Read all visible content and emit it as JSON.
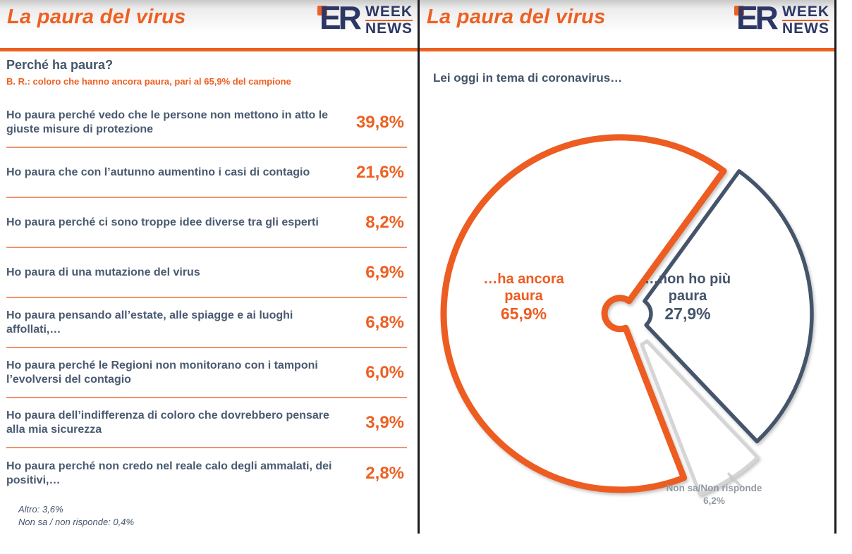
{
  "brand": {
    "monogram": "ER",
    "line1": "WEEK",
    "line2": "NEWS"
  },
  "left_slide": {
    "title": "La paura del virus",
    "question": "Perché ha paura?",
    "base_note": "B. R.: coloro che hanno ancora paura, pari al 65,9% del campione",
    "rows": [
      {
        "label": "Ho paura perché vedo che le persone non mettono in atto le giuste misure di protezione",
        "value": "39,8%"
      },
      {
        "label": "Ho paura che con l’autunno aumentino i casi di contagio",
        "value": "21,6%"
      },
      {
        "label": "Ho paura perché ci sono troppe idee diverse tra gli esperti",
        "value": "8,2%"
      },
      {
        "label": "Ho paura di una mutazione del virus",
        "value": "6,9%"
      },
      {
        "label": "Ho paura pensando all’estate, alle spiagge e ai luoghi affollati,…",
        "value": "6,8%"
      },
      {
        "label": "Ho paura perché le Regioni non monitorano con i tamponi l’evolversi del contagio",
        "value": "6,0%"
      },
      {
        "label": "Ho paura dell’indifferenza di coloro che dovrebbero pensare alla mia sicurezza",
        "value": "3,9%"
      },
      {
        "label": "Ho paura perché non credo nel reale calo degli ammalati, dei positivi,…",
        "value": "2,8%"
      }
    ],
    "footnotes": [
      "Altro: 3,6%",
      "Non sa / non risponde: 0,4%"
    ]
  },
  "right_slide": {
    "title": "La paura del virus",
    "question": "Lei oggi in tema di coronavirus…",
    "pie_labels": {
      "ancora": {
        "line1": "…ha ancora",
        "line2": "paura",
        "pct": "65,9%"
      },
      "nonpiu": {
        "line1": "…non ho più",
        "line2": "paura",
        "pct": "27,9%"
      },
      "nonsa": {
        "line1": "Non sa/Non risponde",
        "pct": "6,2%"
      }
    }
  },
  "chart_data": [
    {
      "type": "bar",
      "title": "Perché ha paura?",
      "subtitle": "B. R.: coloro che hanno ancora paura, pari al 65,9% del campione",
      "categories": [
        "Ho paura perché vedo che le persone non mettono in atto le giuste misure di protezione",
        "Ho paura che con l’autunno aumentino i casi di contagio",
        "Ho paura perché ci sono troppe idee diverse tra gli esperti",
        "Ho paura di una mutazione del virus",
        "Ho paura pensando all’estate, alle spiagge e ai luoghi affollati,…",
        "Ho paura perché le Regioni non monitorano con i tamponi l’evolversi del contagio",
        "Ho paura dell’indifferenza di coloro che dovrebbero pensare alla mia sicurezza",
        "Ho paura perché non credo nel reale calo degli ammalati, dei positivi,…"
      ],
      "values": [
        39.8,
        21.6,
        8.2,
        6.9,
        6.8,
        6.0,
        3.9,
        2.8
      ],
      "value_labels": [
        "39,8%",
        "21,6%",
        "8,2%",
        "6,9%",
        "6,8%",
        "6,0%",
        "3,9%",
        "2,8%"
      ],
      "footnotes": [
        "Altro: 3,6%",
        "Non sa / non risponde: 0,4%"
      ],
      "layout": "label list with right-aligned percentages, orange separators"
    },
    {
      "type": "pie",
      "title": "Lei oggi in tema di coronavirus…",
      "labels": [
        "…ha ancora paura",
        "…non ho più paura",
        "Non sa/Non risponde"
      ],
      "values": [
        65.9,
        27.9,
        6.2
      ],
      "value_labels": [
        "65,9%",
        "27,9%",
        "6,2%"
      ],
      "colors": [
        "#ED5C21",
        "#44546A",
        "#D5D5D5"
      ],
      "start_angle_deg": 36,
      "style": "white-filled outlined slices, small center hole, slices slightly exploded, gray slice pulled out with leader line"
    }
  ],
  "colors": {
    "orange": "#ED6022",
    "pie_orange": "#ED5C21",
    "navy_slate": "#44546A",
    "logo_navy": "#2C3765",
    "gray_slice": "#D5D5D5",
    "gray_label": "#93999F",
    "separator": "#F0936B",
    "divider": "#1a1a20"
  }
}
